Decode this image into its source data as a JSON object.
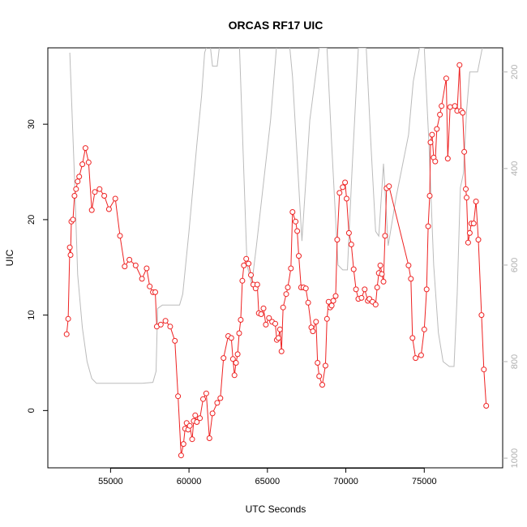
{
  "chart_data": {
    "type": "line",
    "title": "ORCAS RF17 UIC",
    "xlabel": "UTC Seconds",
    "ylabel": "UIC",
    "xlim": [
      51000,
      80000
    ],
    "ylim": [
      -6,
      38
    ],
    "x_ticks": [
      55000,
      60000,
      65000,
      70000,
      75000
    ],
    "x_tick_labels": [
      "55000",
      "60000",
      "65000",
      "70000",
      "75000"
    ],
    "y_ticks": [
      0,
      10,
      20,
      30
    ],
    "y_tick_labels": [
      "0",
      "10",
      "20",
      "30"
    ],
    "y2_lim": [
      1020,
      150
    ],
    "y2_ticks": [
      200,
      400,
      600,
      800,
      1000
    ],
    "y2_tick_labels": [
      "200",
      "400",
      "600",
      "800",
      "1000"
    ],
    "grid": false,
    "colors": {
      "uic": "#ee2222",
      "secondary": "#bbbbbb",
      "axis": "#000000",
      "axis2": "#b0b0b0"
    },
    "series": [
      {
        "axis": "left",
        "points": [
          [
            52200,
            8.0
          ],
          [
            52300,
            9.6
          ],
          [
            52400,
            17.1
          ],
          [
            52450,
            16.3
          ],
          [
            52500,
            19.8
          ],
          [
            52600,
            20.0
          ],
          [
            52700,
            22.5
          ],
          [
            52800,
            23.2
          ],
          [
            52900,
            24.0
          ],
          [
            53000,
            24.5
          ],
          [
            53200,
            25.8
          ],
          [
            53400,
            27.5
          ],
          [
            53600,
            26.0
          ],
          [
            53800,
            21.0
          ],
          [
            54000,
            22.9
          ],
          [
            54300,
            23.2
          ],
          [
            54600,
            22.5
          ],
          [
            54900,
            21.1
          ],
          [
            55300,
            22.2
          ],
          [
            55600,
            18.3
          ],
          [
            55900,
            15.1
          ],
          [
            56200,
            15.8
          ],
          [
            56600,
            15.2
          ],
          [
            57000,
            13.8
          ],
          [
            57300,
            14.9
          ],
          [
            57500,
            13.0
          ],
          [
            57700,
            12.4
          ],
          [
            57850,
            12.4
          ],
          [
            57950,
            8.8
          ],
          [
            58200,
            9.0
          ],
          [
            58500,
            9.4
          ],
          [
            58800,
            8.8
          ],
          [
            59100,
            7.3
          ],
          [
            59300,
            1.5
          ],
          [
            59500,
            -4.7
          ],
          [
            59650,
            -3.5
          ],
          [
            59750,
            -1.9
          ],
          [
            59850,
            -1.3
          ],
          [
            59950,
            -2.0
          ],
          [
            60050,
            -1.6
          ],
          [
            60200,
            -3.0
          ],
          [
            60300,
            -1.1
          ],
          [
            60400,
            -0.5
          ],
          [
            60500,
            -1.2
          ],
          [
            60700,
            -0.8
          ],
          [
            60900,
            1.2
          ],
          [
            61100,
            1.8
          ],
          [
            61300,
            -2.9
          ],
          [
            61500,
            -0.3
          ],
          [
            61800,
            0.8
          ],
          [
            62000,
            1.3
          ],
          [
            62200,
            5.5
          ],
          [
            62500,
            7.8
          ],
          [
            62700,
            7.6
          ],
          [
            62800,
            5.4
          ],
          [
            62900,
            3.7
          ],
          [
            63000,
            5.0
          ],
          [
            63100,
            5.9
          ],
          [
            63200,
            8.1
          ],
          [
            63300,
            9.5
          ],
          [
            63400,
            13.6
          ],
          [
            63500,
            15.2
          ],
          [
            63650,
            15.9
          ],
          [
            63800,
            15.4
          ],
          [
            63950,
            14.2
          ],
          [
            64100,
            13.2
          ],
          [
            64250,
            12.8
          ],
          [
            64350,
            13.2
          ],
          [
            64450,
            10.2
          ],
          [
            64600,
            10.1
          ],
          [
            64750,
            10.7
          ],
          [
            64900,
            9.0
          ],
          [
            65100,
            9.7
          ],
          [
            65300,
            9.3
          ],
          [
            65500,
            9.1
          ],
          [
            65600,
            7.4
          ],
          [
            65700,
            7.6
          ],
          [
            65800,
            8.5
          ],
          [
            65900,
            6.2
          ],
          [
            66000,
            10.8
          ],
          [
            66200,
            12.2
          ],
          [
            66300,
            12.9
          ],
          [
            66500,
            14.9
          ],
          [
            66600,
            20.8
          ],
          [
            66800,
            19.8
          ],
          [
            66900,
            18.8
          ],
          [
            67000,
            16.2
          ],
          [
            67150,
            12.9
          ],
          [
            67300,
            12.9
          ],
          [
            67450,
            12.8
          ],
          [
            67600,
            11.3
          ],
          [
            67800,
            8.7
          ],
          [
            67900,
            8.3
          ],
          [
            68100,
            9.3
          ],
          [
            68200,
            5.0
          ],
          [
            68300,
            3.6
          ],
          [
            68500,
            2.7
          ],
          [
            68700,
            4.7
          ],
          [
            68800,
            9.6
          ],
          [
            68900,
            11.4
          ],
          [
            69000,
            10.8
          ],
          [
            69100,
            11.0
          ],
          [
            69200,
            11.5
          ],
          [
            69350,
            12.0
          ],
          [
            69450,
            17.9
          ],
          [
            69600,
            22.8
          ],
          [
            69800,
            23.4
          ],
          [
            69950,
            23.9
          ],
          [
            70050,
            22.2
          ],
          [
            70200,
            18.6
          ],
          [
            70350,
            17.4
          ],
          [
            70500,
            14.8
          ],
          [
            70650,
            12.7
          ],
          [
            70800,
            11.7
          ],
          [
            71000,
            11.8
          ],
          [
            71200,
            12.7
          ],
          [
            71400,
            11.5
          ],
          [
            71500,
            11.7
          ],
          [
            71700,
            11.4
          ],
          [
            71900,
            11.1
          ],
          [
            72000,
            12.9
          ],
          [
            72100,
            14.4
          ],
          [
            72200,
            15.2
          ],
          [
            72300,
            14.3
          ],
          [
            72400,
            13.5
          ],
          [
            72500,
            18.3
          ],
          [
            72600,
            23.3
          ],
          [
            72750,
            23.5
          ],
          [
            74000,
            15.2
          ],
          [
            74150,
            13.8
          ],
          [
            74250,
            7.6
          ],
          [
            74450,
            5.5
          ],
          [
            74800,
            5.8
          ],
          [
            75000,
            8.5
          ],
          [
            75150,
            12.7
          ],
          [
            75250,
            19.3
          ],
          [
            75350,
            22.5
          ],
          [
            75400,
            28.1
          ],
          [
            75500,
            28.9
          ],
          [
            75600,
            26.5
          ],
          [
            75700,
            26.1
          ],
          [
            75800,
            29.5
          ],
          [
            76000,
            31.0
          ],
          [
            76100,
            31.9
          ],
          [
            76400,
            34.8
          ],
          [
            76500,
            26.4
          ],
          [
            76650,
            31.8
          ],
          [
            76950,
            31.9
          ],
          [
            77100,
            31.4
          ],
          [
            77250,
            36.2
          ],
          [
            77350,
            31.4
          ],
          [
            77450,
            31.2
          ],
          [
            77550,
            27.1
          ],
          [
            77650,
            23.2
          ],
          [
            77700,
            22.3
          ],
          [
            77800,
            17.6
          ],
          [
            77900,
            18.6
          ],
          [
            78000,
            19.6
          ],
          [
            78150,
            19.6
          ],
          [
            78300,
            21.9
          ],
          [
            78450,
            17.9
          ],
          [
            78650,
            10.0
          ],
          [
            78800,
            4.3
          ],
          [
            78950,
            0.5
          ]
        ]
      },
      {
        "axis": "right",
        "points": [
          [
            52400,
            160
          ],
          [
            52700,
            420
          ],
          [
            52900,
            620
          ],
          [
            53200,
            730
          ],
          [
            53500,
            800
          ],
          [
            53800,
            835
          ],
          [
            54100,
            845
          ],
          [
            55000,
            845
          ],
          [
            56000,
            845
          ],
          [
            57000,
            845
          ],
          [
            57700,
            843
          ],
          [
            57900,
            820
          ],
          [
            58000,
            690
          ],
          [
            58300,
            683
          ],
          [
            59000,
            683
          ],
          [
            59400,
            683
          ],
          [
            59600,
            660
          ],
          [
            60000,
            530
          ],
          [
            60500,
            350
          ],
          [
            60800,
            250
          ],
          [
            61000,
            160
          ],
          [
            61300,
            130
          ],
          [
            61500,
            188
          ],
          [
            61800,
            188
          ],
          [
            62000,
            130
          ],
          [
            63200,
            130
          ],
          [
            63700,
            600
          ],
          [
            64000,
            640
          ],
          [
            64300,
            560
          ],
          [
            65200,
            300
          ],
          [
            65600,
            140
          ],
          [
            66400,
            140
          ],
          [
            66600,
            210
          ],
          [
            67200,
            550
          ],
          [
            67700,
            300
          ],
          [
            68300,
            150
          ],
          [
            68800,
            150
          ],
          [
            69100,
            350
          ],
          [
            69500,
            600
          ],
          [
            69800,
            610
          ],
          [
            70100,
            610
          ],
          [
            70400,
            400
          ],
          [
            70800,
            150
          ],
          [
            71300,
            150
          ],
          [
            71600,
            350
          ],
          [
            71900,
            530
          ],
          [
            72100,
            540
          ],
          [
            72400,
            390
          ],
          [
            72700,
            560
          ],
          [
            73200,
            460
          ],
          [
            74000,
            330
          ],
          [
            74300,
            220
          ],
          [
            74700,
            150
          ],
          [
            75000,
            150
          ],
          [
            75300,
            350
          ],
          [
            75600,
            600
          ],
          [
            75900,
            740
          ],
          [
            76200,
            800
          ],
          [
            76600,
            810
          ],
          [
            76900,
            810
          ],
          [
            77100,
            660
          ],
          [
            77300,
            440
          ],
          [
            77500,
            410
          ],
          [
            77700,
            280
          ],
          [
            77900,
            200
          ],
          [
            78400,
            200
          ],
          [
            78700,
            150
          ]
        ]
      }
    ]
  }
}
